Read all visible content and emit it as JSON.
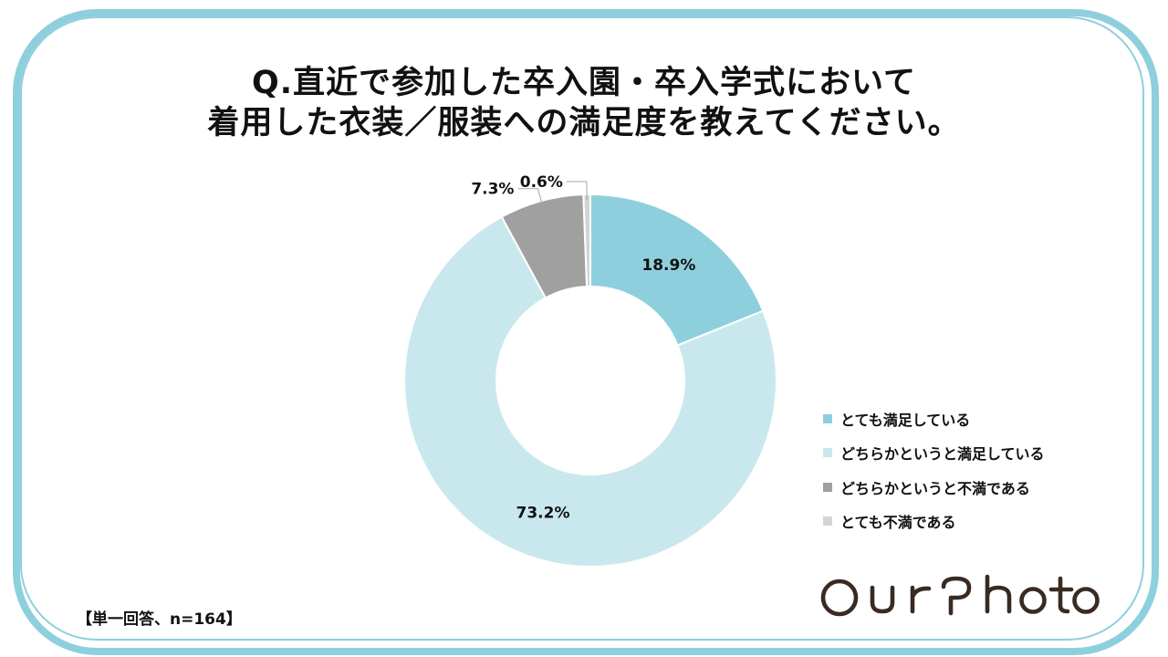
{
  "title": {
    "line1": "Q.直近で参加した卒入園・卒入学式において",
    "line2": "着用した衣装／服装への満足度を教えてください。"
  },
  "chart_data": {
    "type": "pie",
    "variant": "donut",
    "title": "",
    "categories": [
      "とても満足している",
      "どちらかというと満足している",
      "どちらかというと不満である",
      "とても不満である"
    ],
    "values": [
      18.9,
      73.2,
      7.3,
      0.6
    ],
    "value_labels": [
      "18.9%",
      "73.2%",
      "7.3%",
      "0.6%"
    ],
    "colors": [
      "#8ecfdd",
      "#c9e8ee",
      "#a0a0a0",
      "#d4d4d4"
    ],
    "legend_position": "right"
  },
  "footnote": "【単一回答、n=164】",
  "logo": {
    "text": "OurPhoto",
    "color": "#3a2a22"
  },
  "frame_color": "#8ecfdd"
}
